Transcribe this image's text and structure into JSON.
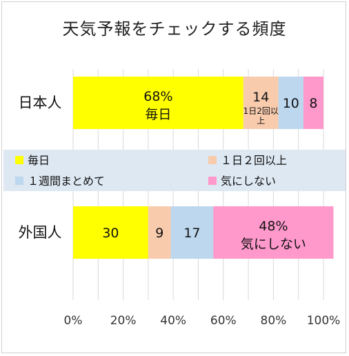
{
  "chart_data": {
    "type": "bar",
    "orientation": "horizontal",
    "stacked": "percent",
    "title": "天気予報をチェックする頻度",
    "categories": [
      "日本人",
      "外国人"
    ],
    "series": [
      {
        "name": "毎日",
        "color": "#ffff00",
        "values": [
          68,
          30
        ]
      },
      {
        "name": "１日２回以上",
        "color": "#f8cbad",
        "values": [
          14,
          9
        ]
      },
      {
        "name": "１週間まとめて",
        "color": "#bdd7ee",
        "values": [
          10,
          17
        ]
      },
      {
        "name": "気にしない",
        "color": "#ff99cc",
        "values": [
          8,
          48
        ]
      }
    ],
    "segment_labels": [
      [
        "68%",
        "14",
        "10",
        "8"
      ],
      [
        "30",
        "9",
        "17",
        "48%"
      ]
    ],
    "segment_sublabels": [
      [
        "毎日",
        "1日2回以上",
        "",
        ""
      ],
      [
        "",
        "",
        "",
        "気にしない"
      ]
    ],
    "xlim": [
      0,
      100
    ],
    "xticks": [
      "0%",
      "20%",
      "40%",
      "60%",
      "80%",
      "100%"
    ],
    "grid": true,
    "legend_position": "middle"
  }
}
